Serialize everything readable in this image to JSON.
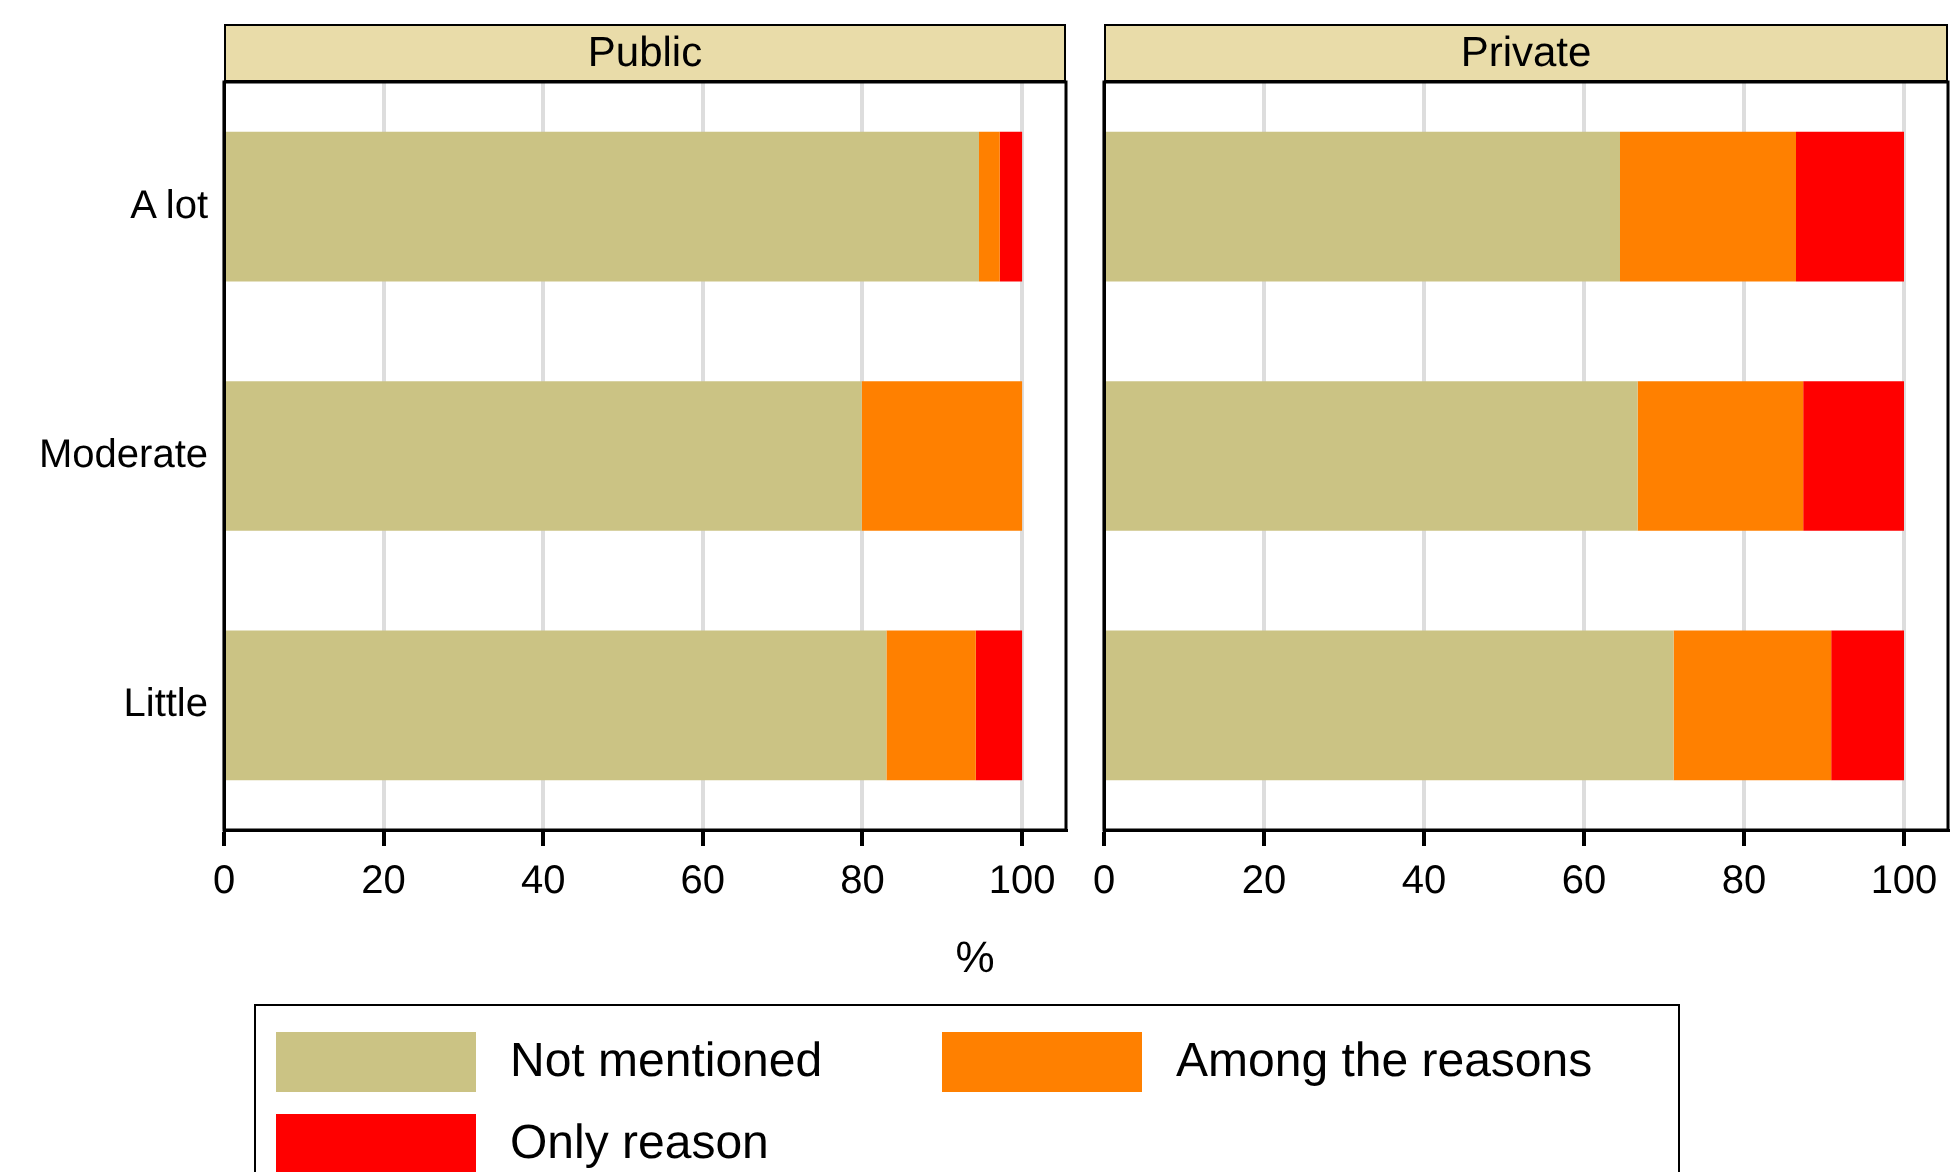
{
  "chart_data": [
    {
      "type": "bar",
      "orientation": "horizontal",
      "stacked": true,
      "title": "Public",
      "xlabel": "%",
      "categories": [
        "A lot",
        "Moderate",
        "Little"
      ],
      "xlim": [
        0,
        105.5
      ],
      "xticks": [
        0,
        20,
        40,
        60,
        80,
        100
      ],
      "grid": "x",
      "legend": "bottom",
      "series": [
        {
          "name": "Not mentioned",
          "color": "#cbc384",
          "values": [
            94.6,
            79.9,
            83.0
          ]
        },
        {
          "name": "Among the reasons",
          "color": "#ff8000",
          "values": [
            2.6,
            20.1,
            11.2
          ]
        },
        {
          "name": "Only reason",
          "color": "#ff0000",
          "values": [
            2.8,
            0,
            5.8
          ]
        }
      ]
    },
    {
      "type": "bar",
      "orientation": "horizontal",
      "stacked": true,
      "title": "Private",
      "categories": [
        null,
        null,
        null
      ],
      "xlim": [
        0,
        105.5
      ],
      "xticks": [
        0,
        20,
        40,
        60,
        80,
        100
      ],
      "grid": "x",
      "tick_labels": "x",
      "series": [
        {
          "color": "#cbc384",
          "values": [
            64.5,
            66.7,
            71.2
          ]
        },
        {
          "color": "#ff8000",
          "values": [
            22.0,
            20.7,
            19.7
          ]
        },
        {
          "color": "#ff0000",
          "values": [
            13.5,
            12.6,
            9.1
          ]
        }
      ]
    }
  ]
}
